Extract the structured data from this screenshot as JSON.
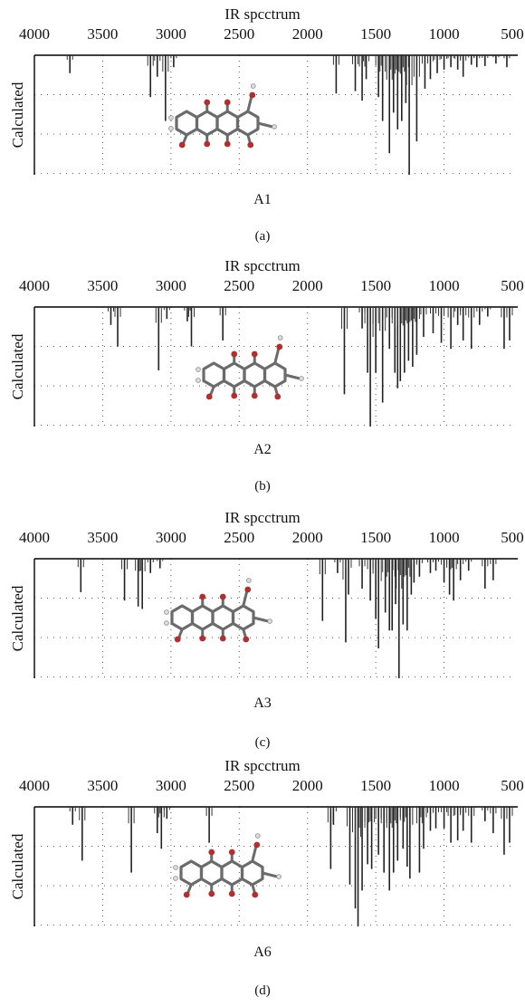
{
  "panels": [
    {
      "title": "IR spcctrum",
      "ylabel": "Calculated",
      "molecule_label": "A1",
      "sub_label": "(a)",
      "x_ticks": [
        "4000",
        "3500",
        "3000",
        "2500",
        "2000",
        "1500",
        "1000",
        "500"
      ]
    },
    {
      "title": "IR spcctrum",
      "ylabel": "Calculated",
      "molecule_label": "A2",
      "sub_label": "(b)",
      "x_ticks": [
        "4000",
        "3500",
        "3000",
        "2500",
        "2000",
        "1500",
        "1000",
        "500"
      ]
    },
    {
      "title": "IR spcctrum",
      "ylabel": "Calculated",
      "molecule_label": "A3",
      "sub_label": "(c)",
      "x_ticks": [
        "4000",
        "3500",
        "3000",
        "2500",
        "2000",
        "1500",
        "1000",
        "500"
      ]
    },
    {
      "title": "IR spcctrum",
      "ylabel": "Calculated",
      "molecule_label": "A6",
      "sub_label": "(d)",
      "x_ticks": [
        "4000",
        "3500",
        "3000",
        "2500",
        "2000",
        "1500",
        "1000",
        "500"
      ]
    }
  ],
  "chart_data": [
    {
      "type": "line",
      "title": "IR spcctrum",
      "xlabel": "",
      "ylabel": "Calculated",
      "xlim": [
        4000,
        500
      ],
      "ylim": [
        0,
        1
      ],
      "x_reversed": true,
      "grid": true,
      "series": [
        {
          "peaks": [
            [
              3740,
              0.15
            ],
            [
              3150,
              0.35
            ],
            [
              3100,
              0.18
            ],
            [
              3040,
              0.55
            ],
            [
              2980,
              0.1
            ],
            [
              1790,
              0.32
            ],
            [
              1650,
              0.3
            ],
            [
              1600,
              0.38
            ],
            [
              1570,
              0.2
            ],
            [
              1480,
              0.35
            ],
            [
              1450,
              0.55
            ],
            [
              1400,
              0.82
            ],
            [
              1370,
              0.48
            ],
            [
              1340,
              0.62
            ],
            [
              1310,
              0.55
            ],
            [
              1280,
              0.4
            ],
            [
              1255,
              1.0
            ],
            [
              1200,
              0.72
            ],
            [
              1140,
              0.28
            ],
            [
              1100,
              0.2
            ],
            [
              1050,
              0.15
            ],
            [
              1000,
              0.12
            ],
            [
              950,
              0.1
            ],
            [
              900,
              0.12
            ],
            [
              860,
              0.18
            ],
            [
              800,
              0.08
            ],
            [
              760,
              0.1
            ],
            [
              700,
              0.09
            ],
            [
              620,
              0.07
            ],
            [
              540,
              0.1
            ]
          ]
        }
      ],
      "molecule_label": "A1"
    },
    {
      "type": "line",
      "title": "IR spcctrum",
      "xlabel": "",
      "ylabel": "Calculated",
      "xlim": [
        4000,
        500
      ],
      "ylim": [
        0,
        1
      ],
      "x_reversed": true,
      "grid": true,
      "series": [
        {
          "peaks": [
            [
              3440,
              0.15
            ],
            [
              3390,
              0.33
            ],
            [
              3090,
              0.53
            ],
            [
              3030,
              0.1
            ],
            [
              2880,
              0.12
            ],
            [
              2850,
              0.33
            ],
            [
              2620,
              0.28
            ],
            [
              1730,
              0.73
            ],
            [
              1600,
              0.18
            ],
            [
              1560,
              0.55
            ],
            [
              1540,
              1.0
            ],
            [
              1500,
              0.55
            ],
            [
              1450,
              0.8
            ],
            [
              1400,
              0.35
            ],
            [
              1360,
              0.55
            ],
            [
              1340,
              0.68
            ],
            [
              1320,
              0.62
            ],
            [
              1290,
              0.55
            ],
            [
              1260,
              0.45
            ],
            [
              1230,
              0.5
            ],
            [
              1200,
              0.4
            ],
            [
              1150,
              0.25
            ],
            [
              1080,
              0.22
            ],
            [
              1020,
              0.3
            ],
            [
              950,
              0.35
            ],
            [
              900,
              0.15
            ],
            [
              860,
              0.28
            ],
            [
              800,
              0.35
            ],
            [
              740,
              0.15
            ],
            [
              680,
              0.08
            ],
            [
              560,
              0.35
            ],
            [
              520,
              0.28
            ]
          ]
        }
      ],
      "molecule_label": "A2"
    },
    {
      "type": "line",
      "title": "IR spcctrum",
      "xlabel": "",
      "ylabel": "Calculated",
      "xlim": [
        4000,
        500
      ],
      "ylim": [
        0,
        1
      ],
      "x_reversed": true,
      "grid": true,
      "series": [
        {
          "peaks": [
            [
              3660,
              0.28
            ],
            [
              3340,
              0.35
            ],
            [
              3240,
              0.4
            ],
            [
              3210,
              0.42
            ],
            [
              3150,
              0.12
            ],
            [
              3080,
              0.08
            ],
            [
              1890,
              0.52
            ],
            [
              1780,
              0.12
            ],
            [
              1720,
              0.7
            ],
            [
              1700,
              0.3
            ],
            [
              1600,
              0.25
            ],
            [
              1540,
              0.35
            ],
            [
              1500,
              0.5
            ],
            [
              1480,
              0.75
            ],
            [
              1430,
              0.45
            ],
            [
              1400,
              0.6
            ],
            [
              1380,
              0.6
            ],
            [
              1355,
              0.38
            ],
            [
              1330,
              1.0
            ],
            [
              1300,
              0.55
            ],
            [
              1270,
              0.6
            ],
            [
              1240,
              0.3
            ],
            [
              1220,
              0.2
            ],
            [
              1180,
              0.15
            ],
            [
              1100,
              0.12
            ],
            [
              1060,
              0.1
            ],
            [
              1000,
              0.2
            ],
            [
              960,
              0.3
            ],
            [
              930,
              0.35
            ],
            [
              880,
              0.18
            ],
            [
              820,
              0.1
            ],
            [
              700,
              0.25
            ],
            [
              640,
              0.18
            ]
          ]
        }
      ],
      "molecule_label": "A3"
    },
    {
      "type": "line",
      "title": "IR spcctrum",
      "xlabel": "",
      "ylabel": "Calculated",
      "xlim": [
        4000,
        500
      ],
      "ylim": [
        0,
        1
      ],
      "x_reversed": true,
      "grid": true,
      "series": [
        {
          "peaks": [
            [
              3720,
              0.15
            ],
            [
              3650,
              0.45
            ],
            [
              3290,
              0.55
            ],
            [
              3100,
              0.22
            ],
            [
              3070,
              0.35
            ],
            [
              3030,
              0.1
            ],
            [
              2720,
              0.3
            ],
            [
              1830,
              0.52
            ],
            [
              1810,
              0.15
            ],
            [
              1690,
              0.65
            ],
            [
              1650,
              0.85
            ],
            [
              1630,
              1.0
            ],
            [
              1600,
              0.7
            ],
            [
              1560,
              0.48
            ],
            [
              1530,
              0.52
            ],
            [
              1480,
              0.4
            ],
            [
              1440,
              0.55
            ],
            [
              1400,
              0.7
            ],
            [
              1370,
              0.55
            ],
            [
              1340,
              0.45
            ],
            [
              1300,
              0.35
            ],
            [
              1270,
              0.5
            ],
            [
              1250,
              0.6
            ],
            [
              1180,
              0.55
            ],
            [
              1150,
              0.35
            ],
            [
              1100,
              0.2
            ],
            [
              1060,
              0.18
            ],
            [
              1000,
              0.18
            ],
            [
              950,
              0.3
            ],
            [
              900,
              0.28
            ],
            [
              860,
              0.2
            ],
            [
              800,
              0.3
            ],
            [
              700,
              0.12
            ],
            [
              640,
              0.22
            ],
            [
              560,
              0.4
            ],
            [
              520,
              0.3
            ]
          ]
        }
      ],
      "molecule_label": "A6"
    }
  ]
}
